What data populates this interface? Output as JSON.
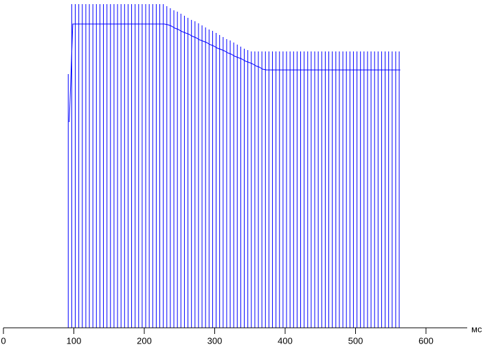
{
  "chart_data": {
    "type": "pulse",
    "x_label": "мс",
    "xlim": [
      0,
      680
    ],
    "xticks": [
      0,
      100,
      200,
      300,
      400,
      500,
      600
    ],
    "ylim": [
      0,
      475
    ],
    "x": [
      92,
      97,
      102,
      107,
      112,
      117,
      122,
      127,
      132,
      137,
      142,
      147,
      152,
      157,
      162,
      167,
      172,
      177,
      182,
      187,
      192,
      197,
      202,
      207,
      212,
      217,
      222,
      227,
      232,
      237,
      242,
      247,
      252,
      257,
      262,
      267,
      272,
      277,
      282,
      287,
      292,
      297,
      302,
      307,
      312,
      317,
      322,
      327,
      332,
      337,
      342,
      347,
      352,
      357,
      362,
      367,
      372,
      377,
      382,
      387,
      392,
      397,
      402,
      407,
      412,
      417,
      422,
      427,
      432,
      437,
      442,
      447,
      452,
      457,
      462,
      467,
      472,
      477,
      482,
      487,
      492,
      497,
      502,
      507,
      512,
      517,
      522,
      527,
      532,
      537,
      542,
      547,
      552,
      557,
      562
    ],
    "series": [
      {
        "color": "#0000ff",
        "values": [
          370,
          472,
          472,
          472,
          472,
          472,
          472,
          472,
          472,
          472,
          472,
          472,
          472,
          472,
          472,
          472,
          472,
          472,
          472,
          472,
          472,
          472,
          472,
          472,
          472,
          472,
          472,
          472,
          469,
          466,
          463,
          461,
          458,
          455,
          452,
          449,
          447,
          444,
          441,
          438,
          435,
          433,
          430,
          427,
          424,
          421,
          419,
          416,
          413,
          410,
          407,
          405,
          403,
          403,
          403,
          403,
          403,
          403,
          403,
          403,
          403,
          403,
          403,
          403,
          403,
          403,
          403,
          403,
          403,
          403,
          403,
          403,
          403,
          403,
          403,
          403,
          403,
          403,
          403,
          403,
          403,
          403,
          403,
          403,
          403,
          403,
          403,
          403,
          403,
          403,
          403,
          403,
          403,
          403,
          403
        ]
      },
      {
        "color": "#0000ff",
        "values": [
          300,
          443,
          443,
          443,
          443,
          443,
          443,
          443,
          443,
          443,
          443,
          443,
          443,
          443,
          443,
          443,
          443,
          443,
          443,
          443,
          443,
          443,
          443,
          443,
          443,
          443,
          443,
          443,
          442,
          440,
          437,
          435,
          432,
          430,
          428,
          425,
          423,
          420,
          418,
          416,
          413,
          411,
          408,
          406,
          404,
          401,
          399,
          396,
          394,
          392,
          389,
          387,
          385,
          382,
          380,
          377,
          376,
          376,
          376,
          376,
          376,
          376,
          376,
          376,
          376,
          376,
          376,
          376,
          376,
          376,
          376,
          376,
          376,
          376,
          376,
          376,
          376,
          376,
          376,
          376,
          376,
          376,
          376,
          376,
          376,
          376,
          376,
          376,
          376,
          376,
          376,
          376,
          376,
          376,
          376
        ]
      }
    ]
  }
}
